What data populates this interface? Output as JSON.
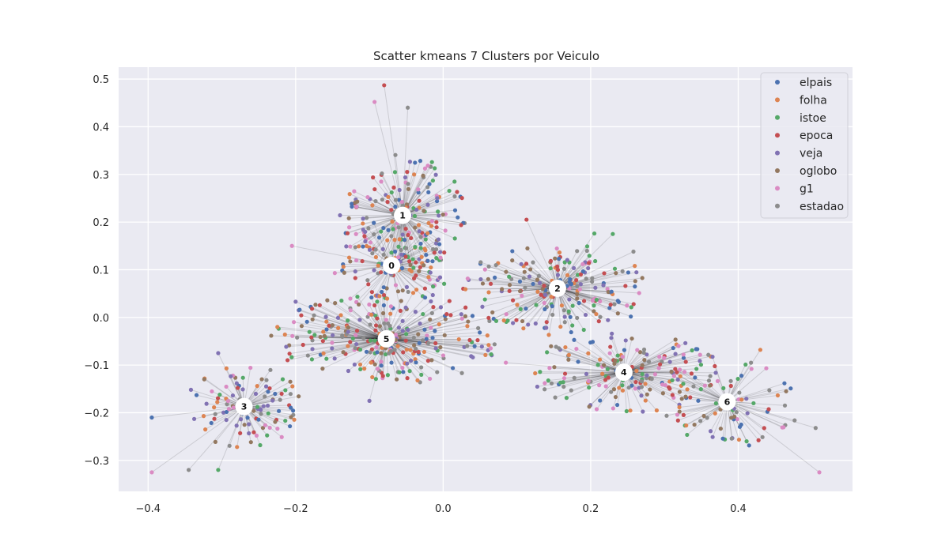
{
  "chart_data": {
    "type": "scatter",
    "title": "Scatter kmeans 7 Clusters por Veiculo",
    "xlabel": "",
    "ylabel": "",
    "xlim": [
      -0.44,
      0.555
    ],
    "ylim": [
      -0.365,
      0.525
    ],
    "xticks": [
      -0.4,
      -0.2,
      0.0,
      0.2,
      0.4
    ],
    "xtick_labels": [
      "−0.4",
      "−0.2",
      "0.0",
      "0.2",
      "0.4"
    ],
    "yticks": [
      -0.3,
      -0.2,
      -0.1,
      0.0,
      0.1,
      0.2,
      0.3,
      0.4,
      0.5
    ],
    "ytick_labels": [
      "−0.3",
      "−0.2",
      "−0.1",
      "0.0",
      "0.1",
      "0.2",
      "0.3",
      "0.4",
      "0.5"
    ],
    "grid": true,
    "legend_position": "top-right",
    "series": [
      {
        "name": "elpais",
        "color": "#4c72b0"
      },
      {
        "name": "folha",
        "color": "#dd8452"
      },
      {
        "name": "istoe",
        "color": "#55a868"
      },
      {
        "name": "epoca",
        "color": "#c44e52"
      },
      {
        "name": "veja",
        "color": "#8172b3"
      },
      {
        "name": "oglobo",
        "color": "#937860"
      },
      {
        "name": "g1",
        "color": "#da8bc3"
      },
      {
        "name": "estadao",
        "color": "#8c8c8c"
      }
    ],
    "centroids": [
      {
        "label": "0",
        "x": -0.07,
        "y": 0.109
      },
      {
        "label": "1",
        "x": -0.055,
        "y": 0.214
      },
      {
        "label": "2",
        "x": 0.155,
        "y": 0.061
      },
      {
        "label": "3",
        "x": -0.27,
        "y": -0.187
      },
      {
        "label": "4",
        "x": 0.245,
        "y": -0.115
      },
      {
        "label": "5",
        "x": -0.077,
        "y": -0.045
      },
      {
        "label": "6",
        "x": 0.385,
        "y": -0.177
      }
    ],
    "clusters": [
      {
        "centroid": 0,
        "n": 110,
        "spread": [
          0.055,
          0.07
        ]
      },
      {
        "centroid": 1,
        "n": 190,
        "spread": [
          0.06,
          0.09
        ]
      },
      {
        "centroid": 2,
        "n": 210,
        "spread": [
          0.09,
          0.07
        ]
      },
      {
        "centroid": 3,
        "n": 110,
        "spread": [
          0.06,
          0.06
        ]
      },
      {
        "centroid": 4,
        "n": 170,
        "spread": [
          0.09,
          0.06
        ]
      },
      {
        "centroid": 5,
        "n": 280,
        "spread": [
          0.11,
          0.07
        ]
      },
      {
        "centroid": 6,
        "n": 90,
        "spread": [
          0.07,
          0.07
        ]
      }
    ],
    "outliers": [
      {
        "x": -0.08,
        "y": 0.487,
        "series": 3,
        "centroid": 1
      },
      {
        "x": -0.093,
        "y": 0.452,
        "series": 6,
        "centroid": 1
      },
      {
        "x": -0.048,
        "y": 0.44,
        "series": 7,
        "centroid": 1
      },
      {
        "x": 0.113,
        "y": 0.205,
        "series": 3,
        "centroid": 2
      },
      {
        "x": 0.205,
        "y": 0.176,
        "series": 2,
        "centroid": 2
      },
      {
        "x": 0.258,
        "y": 0.138,
        "series": 7,
        "centroid": 2
      },
      {
        "x": -0.395,
        "y": -0.325,
        "series": 6,
        "centroid": 3
      },
      {
        "x": -0.395,
        "y": -0.21,
        "series": 0,
        "centroid": 3
      },
      {
        "x": -0.345,
        "y": -0.32,
        "series": 7,
        "centroid": 3
      },
      {
        "x": -0.305,
        "y": -0.32,
        "series": 2,
        "centroid": 3
      },
      {
        "x": -0.305,
        "y": -0.075,
        "series": 4,
        "centroid": 3
      },
      {
        "x": 0.51,
        "y": -0.325,
        "series": 6,
        "centroid": 6
      },
      {
        "x": 0.505,
        "y": -0.232,
        "series": 7,
        "centroid": 6
      },
      {
        "x": 0.465,
        "y": -0.155,
        "series": 5,
        "centroid": 6
      },
      {
        "x": 0.43,
        "y": -0.068,
        "series": 1,
        "centroid": 6
      },
      {
        "x": 0.418,
        "y": -0.108,
        "series": 6,
        "centroid": 6
      },
      {
        "x": -0.205,
        "y": 0.15,
        "series": 6,
        "centroid": 0
      },
      {
        "x": -0.2,
        "y": 0.033,
        "series": 4,
        "centroid": 5
      },
      {
        "x": -0.063,
        "y": -0.13,
        "series": 5,
        "centroid": 5
      },
      {
        "x": -0.1,
        "y": -0.175,
        "series": 4,
        "centroid": 5
      },
      {
        "x": 0.085,
        "y": -0.095,
        "series": 6,
        "centroid": 4
      },
      {
        "x": 0.23,
        "y": 0.175,
        "series": 2,
        "centroid": 2
      }
    ]
  }
}
